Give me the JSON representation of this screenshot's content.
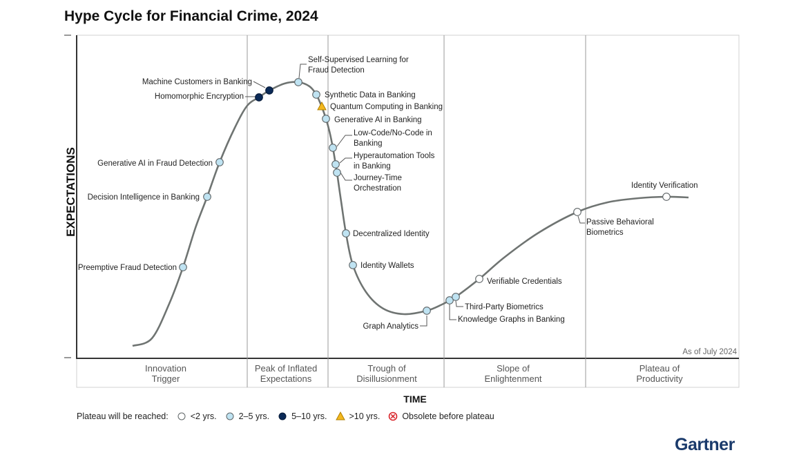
{
  "title": "Hype Cycle for Financial Crime, 2024",
  "as_of": "As of July 2024",
  "brand": "Gartner",
  "chart_data": {
    "type": "scatter",
    "title": "Hype Cycle for Financial Crime, 2024",
    "xlabel": "TIME",
    "ylabel": "EXPECTATIONS",
    "phases": [
      [
        "Innovation",
        "Trigger"
      ],
      [
        "Peak of Inflated",
        "Expectations"
      ],
      [
        "Trough of",
        "Disillusionment"
      ],
      [
        "Slope of",
        "Enlightenment"
      ],
      [
        "Plateau of",
        "Productivity"
      ]
    ],
    "colors": {
      "lt2": "#ffffff",
      "2to5": "#bfe3f2",
      "5to10": "#0b2a57",
      "gt10": "#f3b81f",
      "obsolete": "#d9262c",
      "curve": "#6f7472"
    },
    "technologies": [
      {
        "name": "Preemptive Fraud Detection",
        "t": 0.098,
        "plateau": "2to5"
      },
      {
        "name": "Decision Intelligence in Banking",
        "t": 0.131,
        "plateau": "2to5"
      },
      {
        "name": "Generative AI in Fraud Detection",
        "t": 0.15,
        "plateau": "2to5"
      },
      {
        "name": "Homomorphic Encryption",
        "t": 0.203,
        "plateau": "5to10"
      },
      {
        "name": "Machine Customers in Banking",
        "t": 0.218,
        "plateau": "5to10"
      },
      {
        "name": "Self-Supervised Learning for Fraud Detection",
        "t": 0.26,
        "plateau": "2to5"
      },
      {
        "name": "Synthetic Data in Banking",
        "t": 0.29,
        "plateau": "2to5"
      },
      {
        "name": "Quantum Computing in Banking",
        "t": 0.3,
        "plateau": "gt10"
      },
      {
        "name": "Generative AI in Banking",
        "t": 0.307,
        "plateau": "2to5"
      },
      {
        "name": "Low-Code/No-Code in Banking",
        "t": 0.318,
        "plateau": "2to5"
      },
      {
        "name": "Hyperautomation Tools in Banking",
        "t": 0.325,
        "plateau": "2to5"
      },
      {
        "name": "Journey-Time Orchestration",
        "t": 0.328,
        "plateau": "2to5"
      },
      {
        "name": "Decentralized Identity",
        "t": 0.345,
        "plateau": "2to5"
      },
      {
        "name": "Identity Wallets",
        "t": 0.36,
        "plateau": "2to5"
      },
      {
        "name": "Graph Analytics",
        "t": 0.477,
        "plateau": "2to5"
      },
      {
        "name": "Knowledge Graphs in Banking",
        "t": 0.5,
        "plateau": "2to5"
      },
      {
        "name": "Third-Party Biometrics",
        "t": 0.51,
        "plateau": "2to5"
      },
      {
        "name": "Verifiable Credentials",
        "t": 0.555,
        "plateau": "lt2"
      },
      {
        "name": "Passive Behavioral Biometrics",
        "t": 0.772,
        "plateau": "lt2"
      },
      {
        "name": "Identity Verification",
        "t": 0.91,
        "plateau": "lt2"
      }
    ]
  },
  "legend": {
    "title": "Plateau will be reached:",
    "items": [
      {
        "label": "<2 yrs.",
        "key": "lt2"
      },
      {
        "label": "2–5 yrs.",
        "key": "2to5"
      },
      {
        "label": "5–10 yrs.",
        "key": "5to10"
      },
      {
        "label": ">10 yrs.",
        "key": "gt10"
      },
      {
        "label": "Obsolete before plateau",
        "key": "obsolete"
      }
    ]
  }
}
